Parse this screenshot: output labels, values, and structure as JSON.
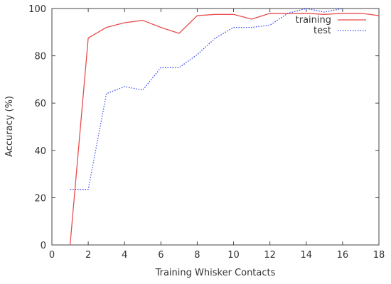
{
  "chart_data": {
    "type": "line",
    "title": "",
    "xlabel": "Training Whisker Contacts",
    "ylabel": "Accuracy (%)",
    "xlim": [
      0,
      18
    ],
    "ylim": [
      0,
      100
    ],
    "xticks": [
      0,
      2,
      4,
      6,
      8,
      10,
      12,
      14,
      16,
      18
    ],
    "yticks": [
      0,
      20,
      40,
      60,
      80,
      100
    ],
    "grid": false,
    "legend_position": "top-right",
    "series": [
      {
        "name": "training",
        "color": "#e84c4c",
        "style": "solid",
        "x": [
          1,
          2,
          3,
          4,
          5,
          6,
          7,
          8,
          9,
          10,
          11,
          12,
          13,
          14,
          15,
          16,
          17,
          18
        ],
        "y": [
          0,
          87.5,
          92,
          94,
          95,
          92,
          89.5,
          97,
          97.5,
          97.5,
          95.5,
          98,
          98,
          98,
          97.5,
          98,
          98,
          97
        ]
      },
      {
        "name": "test",
        "color": "#3344ee",
        "style": "dotted",
        "x": [
          1,
          2,
          3,
          4,
          5,
          6,
          7,
          8,
          9,
          10,
          11,
          12,
          13,
          14,
          15,
          16
        ],
        "y": [
          23.5,
          23.5,
          64,
          67,
          65.5,
          75,
          75,
          80.5,
          87.5,
          92,
          92,
          93,
          98,
          100,
          98.5,
          100
        ]
      }
    ]
  }
}
